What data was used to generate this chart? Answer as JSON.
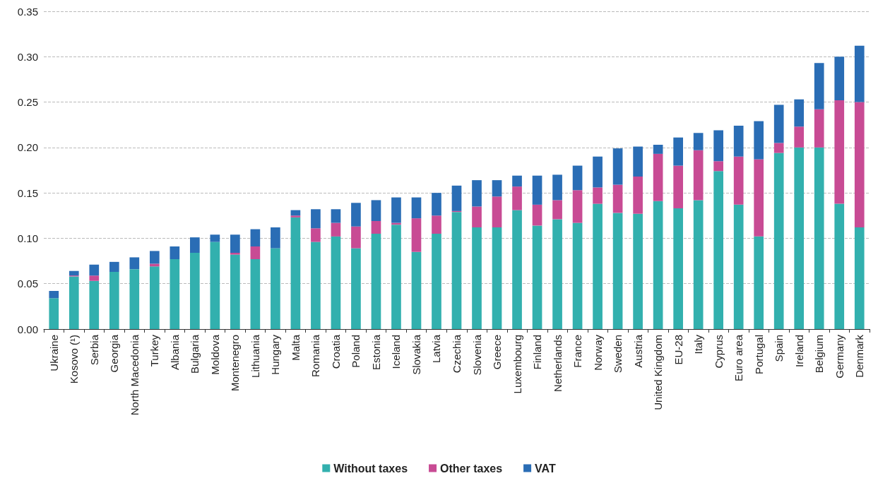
{
  "chart_data": {
    "type": "bar",
    "stacked": true,
    "categories": [
      "Ukraine",
      "Kosovo (¹)",
      "Serbia",
      "Georgia",
      "North Macedonia",
      "Turkey",
      "Albania",
      "Bulgaria",
      "Moldova",
      "Montenegro",
      "Lithuania",
      "Hungary",
      "Malta",
      "Romania",
      "Croatia",
      "Poland",
      "Estonia",
      "Iceland",
      "Slovakia",
      "Latvia",
      "Czechia",
      "Slovenia",
      "Greece",
      "Luxembourg",
      "Finland",
      "Netherlands",
      "France",
      "Norway",
      "Sweden",
      "Austria",
      "United Kingdom",
      "EU-28",
      "Italy",
      "Cyprus",
      "Euro area",
      "Portugal",
      "Spain",
      "Ireland",
      "Belgium",
      "Germany",
      "Denmark"
    ],
    "series": [
      {
        "name": "Without taxes",
        "color": "#32b0ae",
        "values": [
          0.034,
          0.058,
          0.053,
          0.063,
          0.066,
          0.069,
          0.077,
          0.084,
          0.096,
          0.082,
          0.077,
          0.089,
          0.123,
          0.096,
          0.102,
          0.089,
          0.105,
          0.115,
          0.085,
          0.105,
          0.129,
          0.112,
          0.112,
          0.131,
          0.114,
          0.121,
          0.117,
          0.138,
          0.128,
          0.127,
          0.141,
          0.133,
          0.142,
          0.174,
          0.137,
          0.102,
          0.194,
          0.2,
          0.2,
          0.138,
          0.112
        ]
      },
      {
        "name": "Other taxes",
        "color": "#c84b94",
        "values": [
          0,
          0.001,
          0.006,
          0,
          0,
          0.003,
          0,
          0,
          0,
          0.002,
          0.014,
          0,
          0.002,
          0.015,
          0.015,
          0.024,
          0.014,
          0.002,
          0.037,
          0.02,
          0.001,
          0.023,
          0.034,
          0.026,
          0.023,
          0.021,
          0.036,
          0.018,
          0.031,
          0.041,
          0.052,
          0.047,
          0.055,
          0.011,
          0.053,
          0.085,
          0.011,
          0.023,
          0.042,
          0.114,
          0.138
        ]
      },
      {
        "name": "VAT",
        "color": "#2a6db5",
        "values": [
          0.008,
          0.005,
          0.012,
          0.011,
          0.013,
          0.014,
          0.014,
          0.017,
          0.008,
          0.02,
          0.019,
          0.023,
          0.006,
          0.021,
          0.015,
          0.026,
          0.023,
          0.028,
          0.023,
          0.025,
          0.028,
          0.029,
          0.018,
          0.012,
          0.032,
          0.028,
          0.027,
          0.034,
          0.04,
          0.033,
          0.01,
          0.031,
          0.019,
          0.034,
          0.034,
          0.042,
          0.042,
          0.03,
          0.051,
          0.048,
          0.062
        ]
      }
    ],
    "ylim": [
      0,
      0.35
    ],
    "yticks": [
      {
        "value": 0,
        "label": "0.00"
      },
      {
        "value": 0.05,
        "label": "0.05"
      },
      {
        "value": 0.1,
        "label": "0.10"
      },
      {
        "value": 0.15,
        "label": "0.15"
      },
      {
        "value": 0.2,
        "label": "0.20"
      },
      {
        "value": 0.25,
        "label": "0.25"
      },
      {
        "value": 0.3,
        "label": "0.30"
      },
      {
        "value": 0.35,
        "label": "0.35"
      }
    ],
    "grid": "y",
    "legend": "bottom"
  }
}
